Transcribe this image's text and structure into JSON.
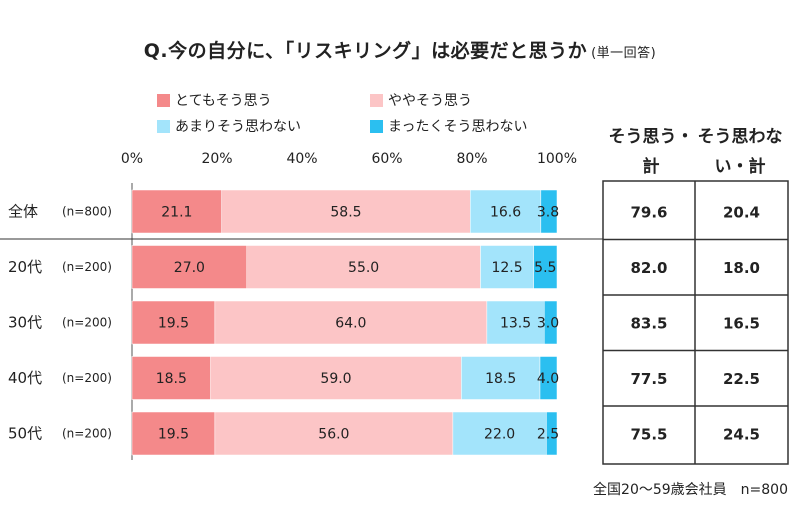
{
  "title": "Q.今の自分に、「リスキリング」は必要だと思うか",
  "title_note": "(単一回答)",
  "legend": [
    {
      "label": "とてもそう思う",
      "color": "#f4898a"
    },
    {
      "label": "ややそう思う",
      "color": "#fcc5c6"
    },
    {
      "label": "あまりそう思わない",
      "color": "#a3e4fb"
    },
    {
      "label": "まったくそう思わない",
      "color": "#2bbff0"
    }
  ],
  "summary_headers": [
    "そう思う・計",
    "そう思わない・計"
  ],
  "footer": "全国20〜59歳会社員　n=800",
  "chart_data": {
    "type": "bar",
    "orientation": "horizontal",
    "stacked": true,
    "x_ticks": [
      "0%",
      "20%",
      "40%",
      "60%",
      "80%",
      "100%"
    ],
    "xlim": [
      0,
      100
    ],
    "categories": [
      "全体",
      "20代",
      "30代",
      "40代",
      "50代"
    ],
    "n_labels": [
      "(n=800)",
      "(n=200)",
      "(n=200)",
      "(n=200)",
      "(n=200)"
    ],
    "series": [
      {
        "name": "とてもそう思う",
        "values": [
          21.1,
          27.0,
          19.5,
          18.5,
          19.5
        ]
      },
      {
        "name": "ややそう思う",
        "values": [
          58.5,
          55.0,
          64.0,
          59.0,
          56.0
        ]
      },
      {
        "name": "あまりそう思わない",
        "values": [
          16.6,
          12.5,
          13.5,
          18.5,
          22.0
        ]
      },
      {
        "name": "まったくそう思わない",
        "values": [
          3.8,
          5.5,
          3.0,
          4.0,
          2.5
        ]
      }
    ],
    "value_labels": [
      [
        "21.1",
        "58.5",
        "16.6",
        "3.8"
      ],
      [
        "27.0",
        "55.0",
        "12.5",
        "5.5"
      ],
      [
        "19.5",
        "64.0",
        "13.5",
        "3.0"
      ],
      [
        "18.5",
        "59.0",
        "18.5",
        "4.0"
      ],
      [
        "19.5",
        "56.0",
        "22.0",
        "2.5"
      ]
    ],
    "summary": {
      "agree_total": [
        "79.6",
        "82.0",
        "83.5",
        "77.5",
        "75.5"
      ],
      "disagree_total": [
        "20.4",
        "18.0",
        "16.5",
        "22.5",
        "24.5"
      ]
    }
  }
}
